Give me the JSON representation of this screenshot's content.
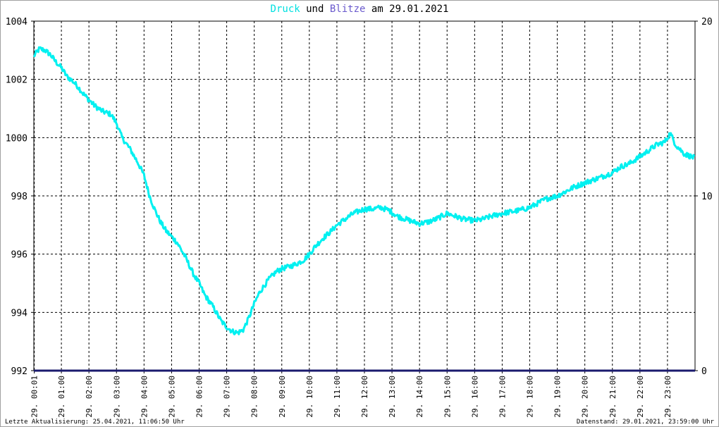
{
  "title": {
    "part1": "Druck",
    "part2": " und ",
    "part3": "Blitze",
    "part4": " am 29.01.2021",
    "colors": {
      "druck": "#00e0e0",
      "und": "#000000",
      "blitze": "#6a5acd",
      "date": "#000000"
    }
  },
  "footer": {
    "left": "Letzte Aktualisierung: 25.04.2021, 11:06:50 Uhr",
    "right": "Datenstand: 29.01.2021, 23:59:00 Uhr"
  },
  "colors": {
    "pressure": "#00f0f0",
    "lightning": "#1a1a6e",
    "grid": "#000000"
  },
  "chart_data": {
    "type": "line",
    "title": "Druck und Blitze am 29.01.2021",
    "grid": true,
    "y_left_ticks": [
      "992",
      "994",
      "996",
      "998",
      "1000",
      "1002",
      "1004"
    ],
    "y_left_range": [
      992,
      1004
    ],
    "y_right_ticks": [
      "0",
      "10",
      "20"
    ],
    "y_right_range": [
      0,
      20
    ],
    "x_range": [
      0,
      24
    ],
    "x_ticks": [
      {
        "t": 0.0167,
        "label": "29. 00:01"
      },
      {
        "t": 1,
        "label": "29. 01:00"
      },
      {
        "t": 2,
        "label": "29. 02:00"
      },
      {
        "t": 3,
        "label": "29. 03:00"
      },
      {
        "t": 4,
        "label": "29. 04:00"
      },
      {
        "t": 5,
        "label": "29. 05:00"
      },
      {
        "t": 6,
        "label": "29. 06:00"
      },
      {
        "t": 7,
        "label": "29. 07:00"
      },
      {
        "t": 8,
        "label": "29. 08:00"
      },
      {
        "t": 9,
        "label": "29. 09:00"
      },
      {
        "t": 10,
        "label": "29. 10:00"
      },
      {
        "t": 11,
        "label": "29. 11:00"
      },
      {
        "t": 12,
        "label": "29. 12:00"
      },
      {
        "t": 13,
        "label": "29. 13:00"
      },
      {
        "t": 14,
        "label": "29. 14:00"
      },
      {
        "t": 15,
        "label": "29. 15:00"
      },
      {
        "t": 16,
        "label": "29. 16:00"
      },
      {
        "t": 17,
        "label": "29. 17:00"
      },
      {
        "t": 18,
        "label": "29. 18:00"
      },
      {
        "t": 19,
        "label": "29. 19:00"
      },
      {
        "t": 20,
        "label": "29. 20:00"
      },
      {
        "t": 21,
        "label": "29. 21:00"
      },
      {
        "t": 22,
        "label": "29. 22:00"
      },
      {
        "t": 23,
        "label": "29. 23:00"
      }
    ],
    "series": [
      {
        "name": "Druck",
        "axis": "left",
        "x": [
          0.0,
          0.2,
          0.4,
          0.6,
          0.8,
          1.0,
          1.2,
          1.4,
          1.6,
          1.8,
          2.0,
          2.2,
          2.5,
          2.8,
          3.0,
          3.2,
          3.5,
          3.8,
          4.0,
          4.2,
          4.4,
          4.6,
          4.8,
          5.0,
          5.2,
          5.5,
          5.8,
          6.0,
          6.2,
          6.5,
          6.8,
          7.0,
          7.2,
          7.4,
          7.6,
          7.8,
          8.0,
          8.2,
          8.5,
          8.8,
          9.0,
          9.2,
          9.5,
          9.8,
          10.0,
          10.2,
          10.5,
          10.8,
          11.0,
          11.3,
          11.6,
          12.0,
          12.3,
          12.6,
          12.9,
          13.2,
          13.5,
          13.8,
          14.0,
          14.3,
          14.6,
          15.0,
          15.3,
          15.6,
          16.0,
          16.3,
          16.6,
          17.0,
          17.3,
          17.6,
          18.0,
          18.3,
          18.6,
          19.0,
          19.3,
          19.6,
          20.0,
          20.3,
          20.6,
          21.0,
          21.3,
          21.6,
          22.0,
          22.3,
          22.6,
          22.9,
          23.1,
          23.3,
          23.6,
          23.98
        ],
        "values": [
          1002.8,
          1003.05,
          1003.0,
          1002.85,
          1002.6,
          1002.4,
          1002.1,
          1001.95,
          1001.75,
          1001.5,
          1001.3,
          1001.1,
          1000.9,
          1000.8,
          1000.5,
          1000.0,
          999.6,
          999.1,
          998.7,
          998.0,
          997.5,
          997.1,
          996.8,
          996.6,
          996.4,
          995.9,
          995.3,
          995.0,
          994.6,
          994.2,
          993.7,
          993.5,
          993.35,
          993.3,
          993.4,
          993.8,
          994.3,
          994.7,
          995.1,
          995.4,
          995.5,
          995.55,
          995.65,
          995.8,
          996.0,
          996.25,
          996.55,
          996.8,
          997.0,
          997.2,
          997.4,
          997.55,
          997.55,
          997.6,
          997.5,
          997.3,
          997.2,
          997.1,
          997.05,
          997.1,
          997.2,
          997.4,
          997.3,
          997.2,
          997.15,
          997.2,
          997.3,
          997.4,
          997.45,
          997.5,
          997.6,
          997.75,
          997.9,
          998.0,
          998.15,
          998.3,
          998.45,
          998.55,
          998.65,
          998.8,
          999.0,
          999.1,
          999.35,
          999.55,
          999.75,
          999.85,
          1000.15,
          999.75,
          999.45,
          999.3
        ]
      },
      {
        "name": "Blitze",
        "axis": "right",
        "x": [
          0,
          24
        ],
        "values": [
          0,
          0
        ]
      }
    ]
  }
}
